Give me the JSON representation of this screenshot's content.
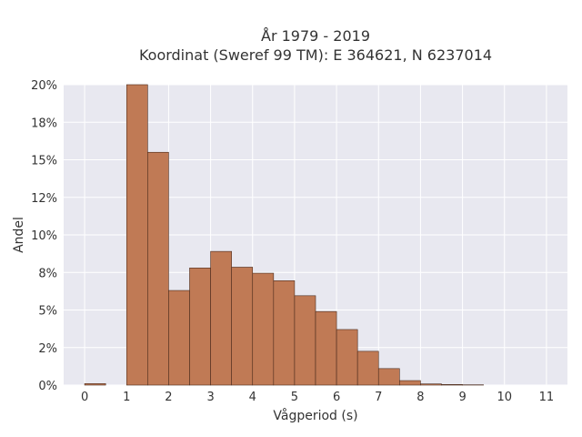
{
  "chart_data": {
    "type": "bar",
    "title_line1": "År 1979 - 2019",
    "title_line2": "Koordinat (Sweref 99 TM): E 364621, N 6237014",
    "xlabel": "Vågperiod (s)",
    "ylabel": "Andel",
    "xlim": [
      -0.5,
      11.5
    ],
    "ylim": [
      0,
      0.2
    ],
    "x_ticks": [
      0,
      1,
      2,
      3,
      4,
      5,
      6,
      7,
      8,
      9,
      10,
      11
    ],
    "y_ticks": [
      0,
      0.025,
      0.05,
      0.075,
      0.1,
      0.125,
      0.15,
      0.175,
      0.2
    ],
    "y_tick_labels": [
      "0%",
      "2%",
      "5%",
      "8%",
      "10%",
      "12%",
      "15%",
      "18%",
      "20%"
    ],
    "bin_width": 0.5,
    "bins": [
      {
        "x0": 0.0,
        "value": 0.001
      },
      {
        "x0": 1.0,
        "value": 0.2
      },
      {
        "x0": 1.5,
        "value": 0.155
      },
      {
        "x0": 2.0,
        "value": 0.063
      },
      {
        "x0": 2.5,
        "value": 0.078
      },
      {
        "x0": 3.0,
        "value": 0.089
      },
      {
        "x0": 3.5,
        "value": 0.0785
      },
      {
        "x0": 4.0,
        "value": 0.0745
      },
      {
        "x0": 4.5,
        "value": 0.0695
      },
      {
        "x0": 5.0,
        "value": 0.0595
      },
      {
        "x0": 5.5,
        "value": 0.049
      },
      {
        "x0": 6.0,
        "value": 0.037
      },
      {
        "x0": 6.5,
        "value": 0.0225
      },
      {
        "x0": 7.0,
        "value": 0.011
      },
      {
        "x0": 7.5,
        "value": 0.003
      },
      {
        "x0": 8.0,
        "value": 0.0008
      },
      {
        "x0": 8.5,
        "value": 0.0004
      },
      {
        "x0": 9.0,
        "value": 0.0002
      }
    ],
    "grid": true,
    "colors": {
      "bar_fill": "#c07a55",
      "bar_edge": "#4a2a1c",
      "plot_bg": "#e8e8f0",
      "grid": "#ffffff"
    }
  }
}
